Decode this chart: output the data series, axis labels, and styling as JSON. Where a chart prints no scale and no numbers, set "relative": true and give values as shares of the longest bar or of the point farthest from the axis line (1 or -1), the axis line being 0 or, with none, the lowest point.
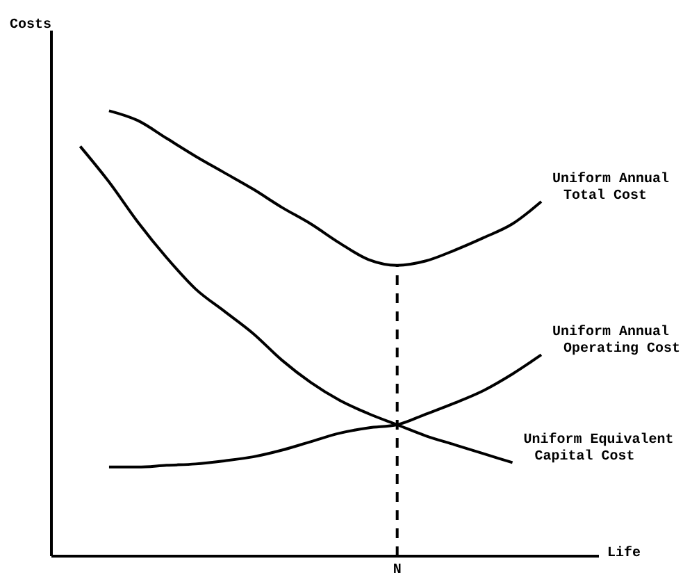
{
  "chart_data": {
    "type": "line",
    "relative": true,
    "xlabel": "Life",
    "categories": [
      null,
      null,
      null,
      null,
      null,
      null,
      null,
      null,
      null,
      null,
      null,
      null,
      null,
      null,
      null,
      null,
      null,
      null,
      null,
      null
    ],
    "annotations": [
      "N",
      "Costs"
    ],
    "series": [
      {
        "name": "Uniform Annual\nTotal Cost",
        "color": "#000000",
        "values": [
          null,
          null,
          1,
          0.978,
          0.938,
          0.898,
          0.861,
          0.824,
          0.783,
          0.746,
          0.703,
          0.666,
          0.653,
          0.663,
          0.687,
          0.715,
          0.746,
          0.796,
          null,
          null
        ]
      },
      {
        "name": "Uniform Annual\nOperating Cost",
        "color": "#000000",
        "values": [
          null,
          null,
          0.2,
          0.2,
          0.204,
          0.207,
          0.214,
          0.223,
          0.238,
          0.257,
          0.276,
          0.288,
          0.295,
          0.319,
          0.344,
          0.372,
          0.409,
          0.452,
          null,
          null
        ]
      },
      {
        "name": "Uniform Equivalent\nCapital Cost",
        "color": "#000000",
        "values": [
          null,
          0.92,
          0.84,
          0.75,
          0.67,
          0.6,
          0.55,
          0.5,
          0.44,
          0.39,
          0.35,
          0.32,
          0.295,
          0.27,
          0.25,
          0.23,
          0.21,
          null,
          null,
          null
        ]
      }
    ],
    "grid": false,
    "legend": false,
    "marker": "none",
    "line_style": "solid"
  }
}
